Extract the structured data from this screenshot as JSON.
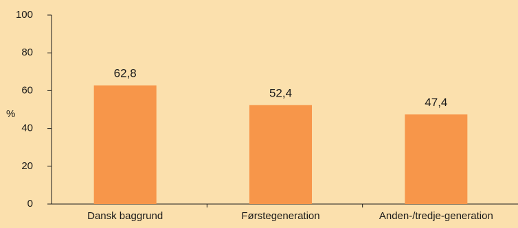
{
  "chart_data": {
    "type": "bar",
    "categories": [
      "Dansk baggrund",
      "Førstegeneration",
      "Anden-/tredje-generation"
    ],
    "values": [
      62.8,
      52.4,
      47.4
    ],
    "data_labels": [
      "62,8",
      "52,4",
      "47,4"
    ],
    "ylabel": "%",
    "ylim": [
      0,
      100
    ],
    "yticks": [
      0,
      20,
      40,
      60,
      80,
      100
    ],
    "grid": false,
    "bar_color": "#f7964a",
    "background": "#fbe0ad",
    "axis_color": "#1a1a1a"
  }
}
